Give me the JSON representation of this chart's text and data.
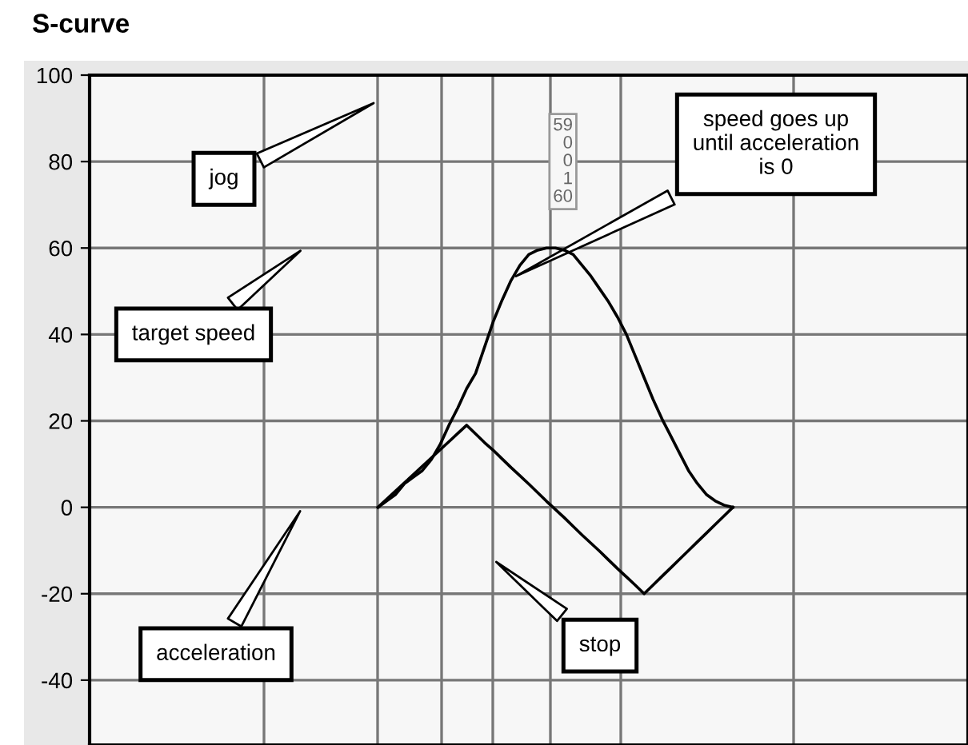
{
  "chart_data": {
    "type": "line",
    "title": "S-curve",
    "categories": [
      null,
      null,
      null,
      null,
      null,
      null,
      null,
      null,
      null,
      null,
      null,
      null,
      null,
      null,
      null,
      null,
      null,
      null,
      null,
      null,
      null,
      null,
      null,
      null,
      null,
      null,
      null,
      null,
      null,
      null,
      null,
      null,
      null,
      null,
      null,
      null,
      null,
      null,
      null,
      null,
      null,
      null,
      null,
      null,
      null,
      null,
      null,
      null,
      null,
      null,
      null,
      null,
      null,
      null,
      null,
      null,
      null,
      null,
      null,
      null,
      null,
      null,
      null,
      null,
      null,
      null,
      null,
      null,
      null,
      null,
      null,
      null,
      null,
      null,
      null,
      null,
      null,
      null,
      null,
      null,
      null,
      null,
      null,
      null,
      null,
      null,
      null,
      null,
      null,
      null,
      null,
      null,
      null,
      null,
      null,
      null,
      null,
      null,
      null
    ],
    "series": [
      {
        "color": "#000000",
        "values": [
          null,
          null,
          null,
          null,
          null,
          null,
          null,
          null,
          null,
          null,
          null,
          null,
          null,
          null,
          null,
          null,
          null,
          null,
          null,
          null,
          null,
          null,
          null,
          null,
          null,
          null,
          null,
          null,
          null,
          null,
          null,
          null,
          0,
          1.5,
          3,
          5.5,
          7,
          8.5,
          11,
          14.5,
          19,
          23,
          27.5,
          31,
          37,
          43,
          48,
          52.5,
          56,
          58.5,
          59.5,
          60,
          60,
          59.5,
          58.5,
          56,
          53.5,
          50.5,
          47.5,
          44,
          40,
          35,
          30,
          25,
          20.5,
          16.5,
          12.5,
          8.5,
          5.5,
          3,
          1.5,
          0.5,
          0,
          null,
          null,
          null,
          null,
          null,
          null,
          null,
          null,
          null,
          null,
          null,
          null,
          null,
          null,
          null,
          null,
          null,
          null,
          null,
          null,
          null,
          null,
          null,
          null,
          null,
          null
        ]
      },
      {
        "color": "#000000",
        "values": [
          null,
          null,
          null,
          null,
          null,
          null,
          null,
          null,
          null,
          null,
          null,
          null,
          null,
          null,
          null,
          null,
          null,
          null,
          null,
          null,
          null,
          null,
          null,
          null,
          null,
          null,
          null,
          null,
          null,
          null,
          null,
          null,
          0,
          1.9,
          3.8,
          5.7,
          7.6,
          9.5,
          11.4,
          13.3,
          15.2,
          17.1,
          19,
          17,
          15,
          13.2,
          11.2,
          9.2,
          7.3,
          5.4,
          3.4,
          1.4,
          -0.5,
          -2.4,
          -4.4,
          -6.4,
          -8.3,
          -10.2,
          -12.2,
          -14.2,
          -16.1,
          -18,
          -20,
          -18,
          -16,
          -14,
          -12,
          -10,
          -8,
          -6,
          -4,
          -2,
          0,
          null,
          null,
          null,
          null,
          null,
          null,
          null,
          null,
          null,
          null,
          null,
          null,
          null,
          null,
          null,
          null,
          null,
          null,
          null,
          null,
          null,
          null,
          null,
          null,
          null,
          null
        ]
      }
    ],
    "annotations": [
      "jog",
      "target speed",
      "acceleration",
      "stop",
      "speed goes up\nuntil acceleration\nis 0",
      "59\n0\n0\n1\n60"
    ],
    "ylim": [
      -55,
      100
    ],
    "yticks": [
      -40,
      -20,
      0,
      20,
      40,
      60,
      80,
      100
    ],
    "tick_labels": "y",
    "grid": true,
    "marker": "none",
    "line_style": "solid"
  }
}
